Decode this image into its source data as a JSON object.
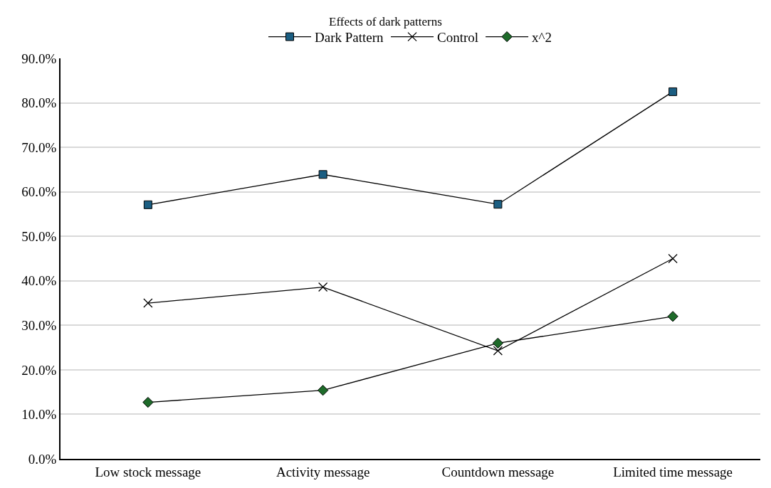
{
  "chart_data": {
    "type": "line",
    "title": "Effects of dark patterns",
    "categories": [
      "Low stock message",
      "Activity message",
      "Countdown message",
      "Limited time message"
    ],
    "series": [
      {
        "name": "Dark Pattern",
        "color": "#1b5e82",
        "marker": "square",
        "values": [
          57.1,
          63.9,
          57.2,
          82.5
        ]
      },
      {
        "name": "Control",
        "color": "#000000",
        "marker": "cross",
        "values": [
          35.0,
          38.6,
          24.3,
          45.0
        ]
      },
      {
        "name": "x^2",
        "color": "#1e6b2a",
        "marker": "diamond",
        "values": [
          12.7,
          15.4,
          26.0,
          32.0
        ]
      }
    ],
    "ylim": [
      0,
      90
    ],
    "yticks": [
      {
        "value": 0,
        "label": "0.0%"
      },
      {
        "value": 10,
        "label": "10.0%"
      },
      {
        "value": 20,
        "label": "20.0%"
      },
      {
        "value": 30,
        "label": "30.0%"
      },
      {
        "value": 40,
        "label": "40.0%"
      },
      {
        "value": 50,
        "label": "50.0%"
      },
      {
        "value": 60,
        "label": "60.0%"
      },
      {
        "value": 70,
        "label": "70.0%"
      },
      {
        "value": 80,
        "label": "80.0%"
      },
      {
        "value": 90,
        "label": "90.0%"
      }
    ],
    "grid": "y",
    "legend": "top",
    "line_style": "solid"
  }
}
